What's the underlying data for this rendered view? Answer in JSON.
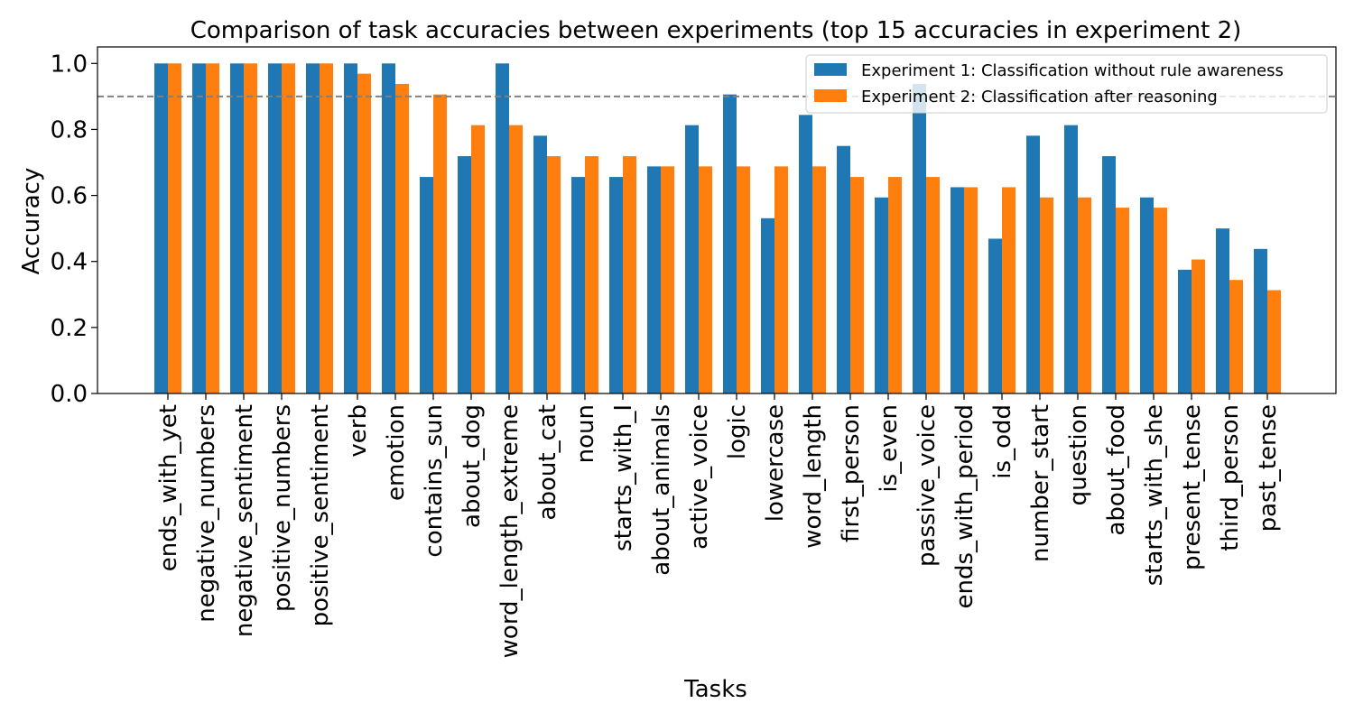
{
  "chart_data": {
    "type": "bar",
    "title": "Comparison of task accuracies between experiments (top 15 accuracies in experiment 2)",
    "xlabel": "Tasks",
    "ylabel": "Accuracy",
    "ylim": [
      0,
      1.05
    ],
    "yticks": [
      "0.0",
      "0.2",
      "0.4",
      "0.6",
      "0.8",
      "1.0"
    ],
    "threshold": 0.9,
    "legend_position": "top-right",
    "categories": [
      "ends_with_yet",
      "negative_numbers",
      "negative_sentiment",
      "positive_numbers",
      "positive_sentiment",
      "verb",
      "emotion",
      "contains_sun",
      "about_dog",
      "word_length_extreme",
      "about_cat",
      "noun",
      "starts_with_I",
      "about_animals",
      "active_voice",
      "logic",
      "lowercase",
      "word_length",
      "first_person",
      "is_even",
      "passive_voice",
      "ends_with_period",
      "is_odd",
      "number_start",
      "question",
      "about_food",
      "starts_with_she",
      "present_tense",
      "third_person",
      "past_tense"
    ],
    "series": [
      {
        "name": "Experiment 1: Classification without rule awareness",
        "color": "#1f77b4",
        "values": [
          1.0,
          1.0,
          1.0,
          1.0,
          1.0,
          1.0,
          1.0,
          0.656,
          0.719,
          1.0,
          0.781,
          0.656,
          0.656,
          0.688,
          0.813,
          0.906,
          0.531,
          0.844,
          0.75,
          0.594,
          0.938,
          0.625,
          0.469,
          0.781,
          0.813,
          0.719,
          0.594,
          0.375,
          0.5,
          0.438
        ]
      },
      {
        "name": "Experiment 2: Classification after reasoning",
        "color": "#ff7f0e",
        "values": [
          1.0,
          1.0,
          1.0,
          1.0,
          1.0,
          0.969,
          0.938,
          0.906,
          0.813,
          0.813,
          0.719,
          0.719,
          0.719,
          0.688,
          0.688,
          0.688,
          0.688,
          0.688,
          0.656,
          0.656,
          0.656,
          0.625,
          0.625,
          0.594,
          0.594,
          0.563,
          0.563,
          0.406,
          0.344,
          0.313
        ]
      }
    ]
  }
}
